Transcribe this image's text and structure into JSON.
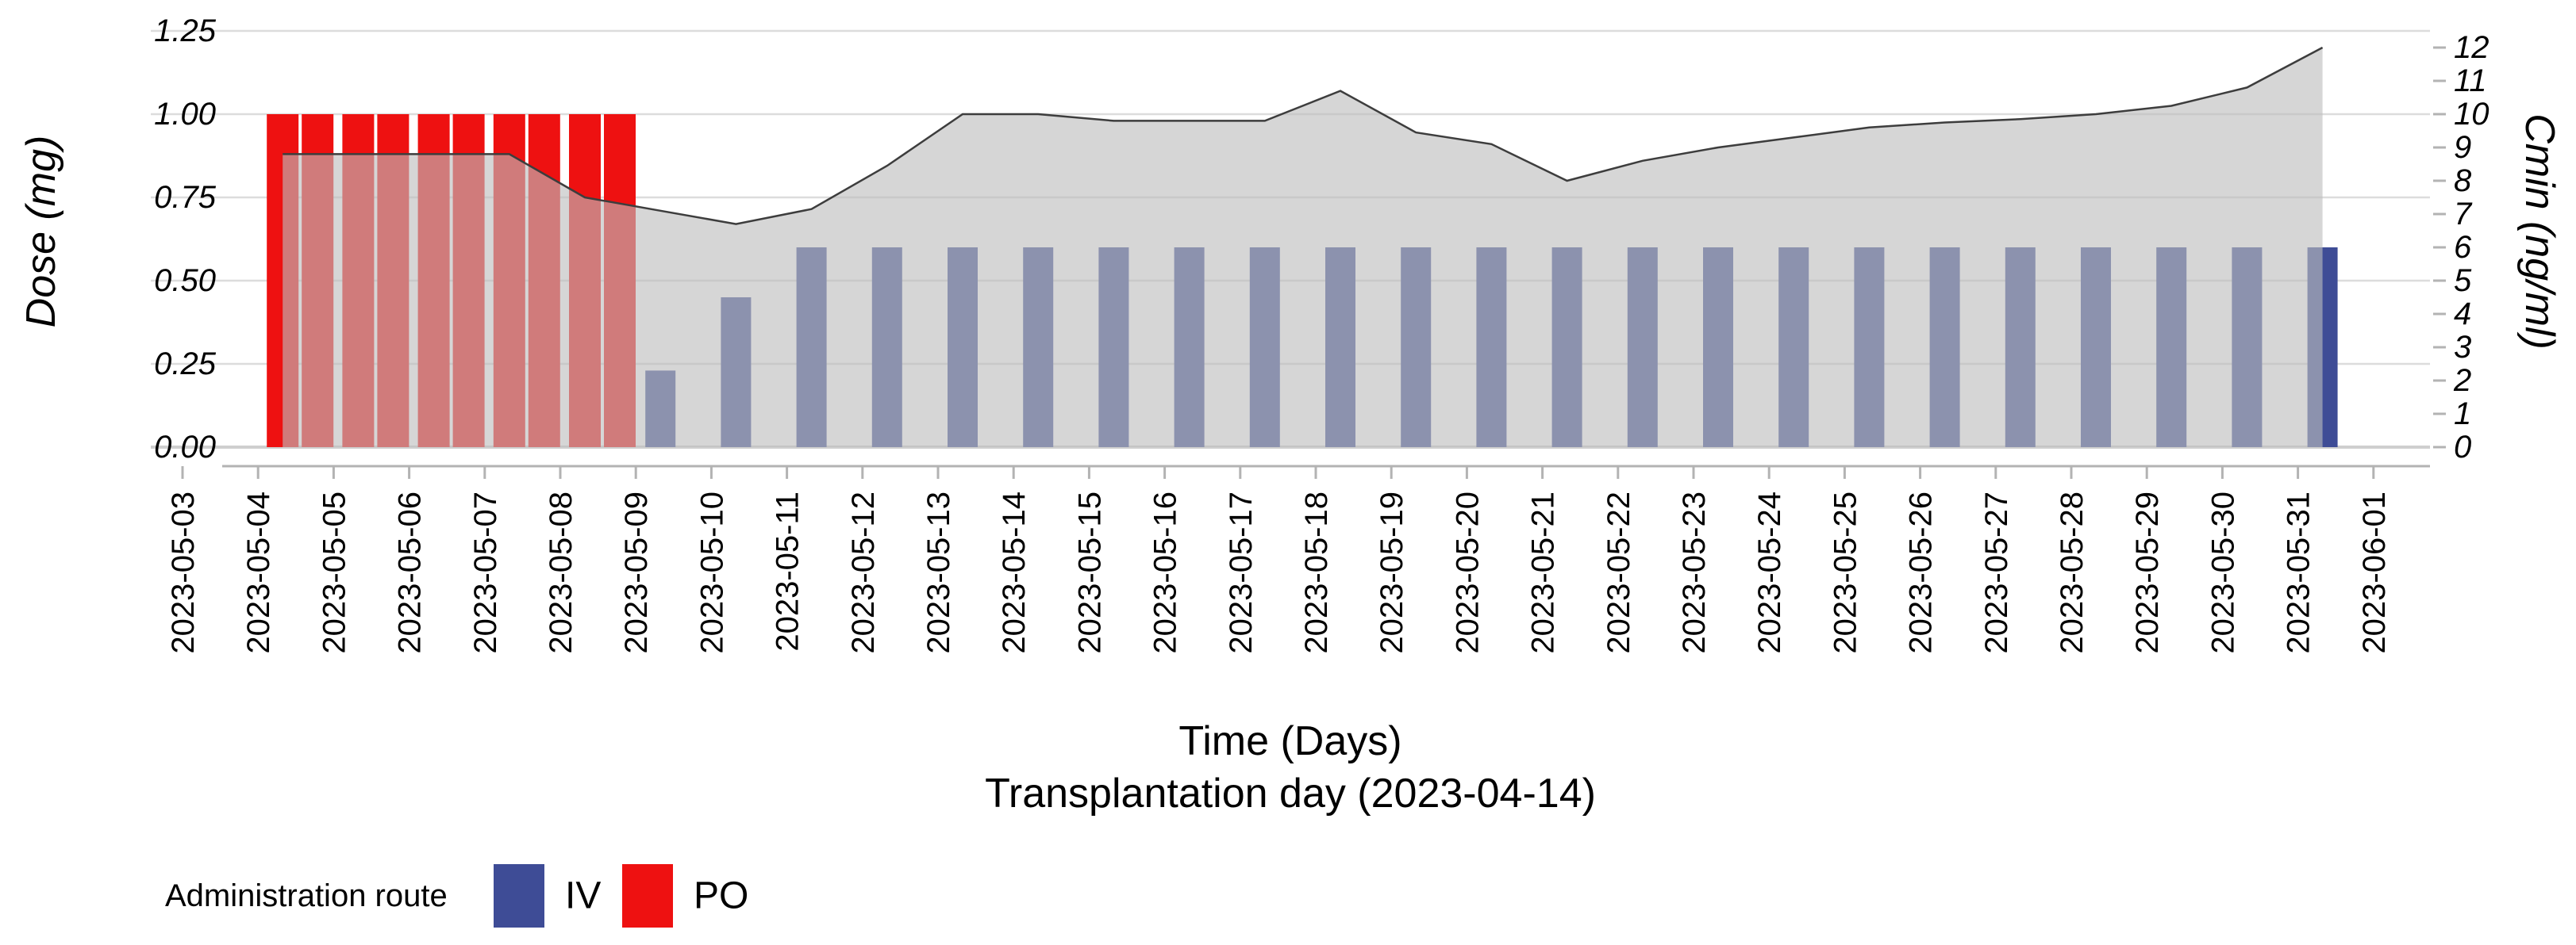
{
  "chart_data": {
    "type": [
      "bar",
      "area"
    ],
    "x_axis": {
      "label_line1": "Time (Days)",
      "label_line2": "Transplantation day (2023-04-14)",
      "dates": [
        "2023-05-03",
        "2023-05-04",
        "2023-05-05",
        "2023-05-06",
        "2023-05-07",
        "2023-05-08",
        "2023-05-09",
        "2023-05-10",
        "2023-05-11",
        "2023-05-12",
        "2023-05-13",
        "2023-05-14",
        "2023-05-15",
        "2023-05-16",
        "2023-05-17",
        "2023-05-18",
        "2023-05-19",
        "2023-05-20",
        "2023-05-21",
        "2023-05-22",
        "2023-05-23",
        "2023-05-24",
        "2023-05-25",
        "2023-05-26",
        "2023-05-27",
        "2023-05-28",
        "2023-05-29",
        "2023-05-30",
        "2023-05-31",
        "2023-06-01"
      ]
    },
    "left_axis": {
      "label": "Dose (mg)",
      "ticks": [
        "0.00",
        "0.25",
        "0.50",
        "0.75",
        "1.00",
        "1.25"
      ],
      "range": [
        0,
        1.25
      ],
      "grid": true
    },
    "right_axis": {
      "label": "Cmin (ng/ml)",
      "ticks": [
        "0",
        "1",
        "2",
        "3",
        "4",
        "5",
        "6",
        "7",
        "8",
        "9",
        "10",
        "11",
        "12"
      ],
      "range": [
        0,
        12.5
      ]
    },
    "po_doses_mg": [
      {
        "date": "2023-05-04",
        "time": "morning",
        "dose": 1.0
      },
      {
        "date": "2023-05-04",
        "time": "evening",
        "dose": 1.0
      },
      {
        "date": "2023-05-05",
        "time": "morning",
        "dose": 1.0
      },
      {
        "date": "2023-05-05",
        "time": "evening",
        "dose": 1.0
      },
      {
        "date": "2023-05-06",
        "time": "morning",
        "dose": 1.0
      },
      {
        "date": "2023-05-06",
        "time": "evening",
        "dose": 1.0
      },
      {
        "date": "2023-05-07",
        "time": "morning",
        "dose": 1.0
      },
      {
        "date": "2023-05-07",
        "time": "evening",
        "dose": 1.0
      },
      {
        "date": "2023-05-08",
        "time": "morning",
        "dose": 1.0
      },
      {
        "date": "2023-05-08",
        "time": "evening",
        "dose": 1.0
      }
    ],
    "iv_doses_mg": [
      {
        "date": "2023-05-09",
        "dose": 0.23
      },
      {
        "date": "2023-05-10",
        "dose": 0.45
      },
      {
        "date": "2023-05-11",
        "dose": 0.6
      },
      {
        "date": "2023-05-12",
        "dose": 0.6
      },
      {
        "date": "2023-05-13",
        "dose": 0.6
      },
      {
        "date": "2023-05-14",
        "dose": 0.6
      },
      {
        "date": "2023-05-15",
        "dose": 0.6
      },
      {
        "date": "2023-05-16",
        "dose": 0.6
      },
      {
        "date": "2023-05-17",
        "dose": 0.6
      },
      {
        "date": "2023-05-18",
        "dose": 0.6
      },
      {
        "date": "2023-05-19",
        "dose": 0.6
      },
      {
        "date": "2023-05-20",
        "dose": 0.6
      },
      {
        "date": "2023-05-21",
        "dose": 0.6
      },
      {
        "date": "2023-05-22",
        "dose": 0.6
      },
      {
        "date": "2023-05-23",
        "dose": 0.6
      },
      {
        "date": "2023-05-24",
        "dose": 0.6
      },
      {
        "date": "2023-05-25",
        "dose": 0.6
      },
      {
        "date": "2023-05-26",
        "dose": 0.6
      },
      {
        "date": "2023-05-27",
        "dose": 0.6
      },
      {
        "date": "2023-05-28",
        "dose": 0.6
      },
      {
        "date": "2023-05-29",
        "dose": 0.6
      },
      {
        "date": "2023-05-30",
        "dose": 0.6
      },
      {
        "date": "2023-05-31",
        "dose": 0.6
      }
    ],
    "cmin_series_ng_ml": [
      {
        "date": "2023-05-04",
        "value": 8.8
      },
      {
        "date": "2023-05-05",
        "value": 8.8
      },
      {
        "date": "2023-05-06",
        "value": 8.8
      },
      {
        "date": "2023-05-07",
        "value": 8.8
      },
      {
        "date": "2023-05-08",
        "value": 7.5
      },
      {
        "date": "2023-05-09",
        "value": 7.1
      },
      {
        "date": "2023-05-10",
        "value": 6.7
      },
      {
        "date": "2023-05-11",
        "value": 7.15
      },
      {
        "date": "2023-05-12",
        "value": 8.45
      },
      {
        "date": "2023-05-13",
        "value": 10.0
      },
      {
        "date": "2023-05-14",
        "value": 10.0
      },
      {
        "date": "2023-05-15",
        "value": 9.8
      },
      {
        "date": "2023-05-16",
        "value": 9.8
      },
      {
        "date": "2023-05-17",
        "value": 9.8
      },
      {
        "date": "2023-05-18",
        "value": 10.7
      },
      {
        "date": "2023-05-19",
        "value": 9.45
      },
      {
        "date": "2023-05-20",
        "value": 9.1
      },
      {
        "date": "2023-05-21",
        "value": 8.0
      },
      {
        "date": "2023-05-22",
        "value": 8.6
      },
      {
        "date": "2023-05-23",
        "value": 9.0
      },
      {
        "date": "2023-05-24",
        "value": 9.3
      },
      {
        "date": "2023-05-25",
        "value": 9.6
      },
      {
        "date": "2023-05-26",
        "value": 9.75
      },
      {
        "date": "2023-05-27",
        "value": 9.85
      },
      {
        "date": "2023-05-28",
        "value": 10.0
      },
      {
        "date": "2023-05-29",
        "value": 10.25
      },
      {
        "date": "2023-05-30",
        "value": 10.8
      },
      {
        "date": "2023-05-31",
        "value": 12.0
      }
    ],
    "legend": {
      "title": "Administration route",
      "items": [
        {
          "label": "IV",
          "color": "#3E4C96"
        },
        {
          "label": "PO",
          "color": "#EE1111"
        }
      ]
    },
    "colors": {
      "area_fill": "rgba(189,189,189,0.62)",
      "area_line": "#3d3d3d",
      "gridline": "#DCDCDC",
      "baseline": "#CFCFCF",
      "axis_line": "#B3B3B3"
    }
  }
}
